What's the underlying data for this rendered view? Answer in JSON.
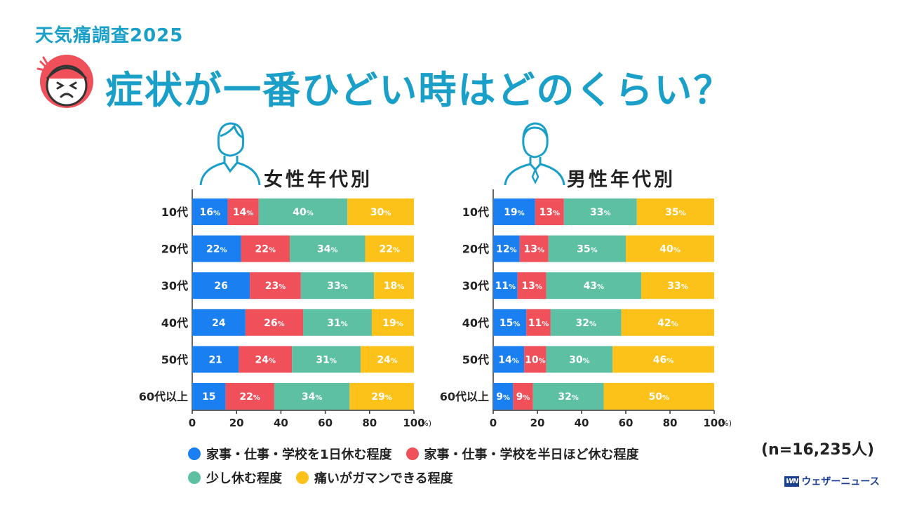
{
  "header": {
    "subtitle": "天気痛調査2025",
    "title": "症状が一番ひどい時はどのくらい？"
  },
  "colors": {
    "title": "#1aa0c8",
    "full_day": "#1a7ff0",
    "half_day": "#f0505a",
    "short_rest": "#5ec0a3",
    "pain_endure": "#fcc21a"
  },
  "icons": [
    "pained-face-icon",
    "woman-icon",
    "man-icon"
  ],
  "chart_data": [
    {
      "type": "bar",
      "orientation": "horizontal",
      "stacked": true,
      "title": "女性年代別",
      "categories": [
        "10代",
        "20代",
        "30代",
        "40代",
        "50代",
        "60代以上"
      ],
      "series": [
        {
          "name": "家事・仕事・学校を1日休む程度",
          "values": [
            16,
            22,
            26,
            24,
            21,
            15
          ],
          "labels": [
            "16%",
            "22%",
            "26",
            "24",
            "21",
            "15"
          ]
        },
        {
          "name": "家事・仕事・学校を半日ほど休む程度",
          "values": [
            14,
            22,
            23,
            26,
            24,
            22
          ],
          "labels": [
            "14%",
            "22%",
            "23%",
            "26%",
            "24%",
            "22%"
          ]
        },
        {
          "name": "少し休む程度",
          "values": [
            40,
            34,
            33,
            31,
            31,
            34
          ],
          "labels": [
            "40%",
            "34%",
            "33%",
            "31%",
            "31%",
            "34%"
          ]
        },
        {
          "name": "痛いがガマンできる程度",
          "values": [
            30,
            22,
            18,
            19,
            24,
            29
          ],
          "labels": [
            "30%",
            "22%",
            "18%",
            "19%",
            "24%",
            "29%"
          ]
        }
      ],
      "xlim": [
        0,
        100
      ],
      "xticks": [
        "0",
        "20",
        "40",
        "60",
        "80",
        "100"
      ],
      "xunit": "(%)"
    },
    {
      "type": "bar",
      "orientation": "horizontal",
      "stacked": true,
      "title": "男性年代別",
      "categories": [
        "10代",
        "20代",
        "30代",
        "40代",
        "50代",
        "60代以上"
      ],
      "series": [
        {
          "name": "家事・仕事・学校を1日休む程度",
          "values": [
            19,
            12,
            11,
            15,
            14,
            9
          ],
          "labels": [
            "19%",
            "12%",
            "11%",
            "15%",
            "14%",
            "9%"
          ]
        },
        {
          "name": "家事・仕事・学校を半日ほど休む程度",
          "values": [
            13,
            13,
            13,
            11,
            10,
            9
          ],
          "labels": [
            "13%",
            "13%",
            "13%",
            "11%",
            "10%",
            "9%"
          ]
        },
        {
          "name": "少し休む程度",
          "values": [
            33,
            35,
            43,
            32,
            30,
            32
          ],
          "labels": [
            "33%",
            "35%",
            "43%",
            "32%",
            "30%",
            "32%"
          ]
        },
        {
          "name": "痛いがガマンできる程度",
          "values": [
            35,
            40,
            33,
            42,
            46,
            50
          ],
          "labels": [
            "35%",
            "40%",
            "33%",
            "42%",
            "46%",
            "50%"
          ]
        }
      ],
      "xlim": [
        0,
        100
      ],
      "xticks": [
        "0",
        "20",
        "40",
        "60",
        "80",
        "100"
      ],
      "xunit": "(%)"
    }
  ],
  "legend": {
    "full_day": "家事・仕事・学校を1日休む程度",
    "half_day": "家事・仕事・学校を半日ほど休む程度",
    "short_rest": "少し休む程度",
    "pain_endure": "痛いがガマンできる程度"
  },
  "sample_note": "(n=16,235人)",
  "brand": {
    "mark": "WN",
    "name": "ウェザーニュース"
  }
}
